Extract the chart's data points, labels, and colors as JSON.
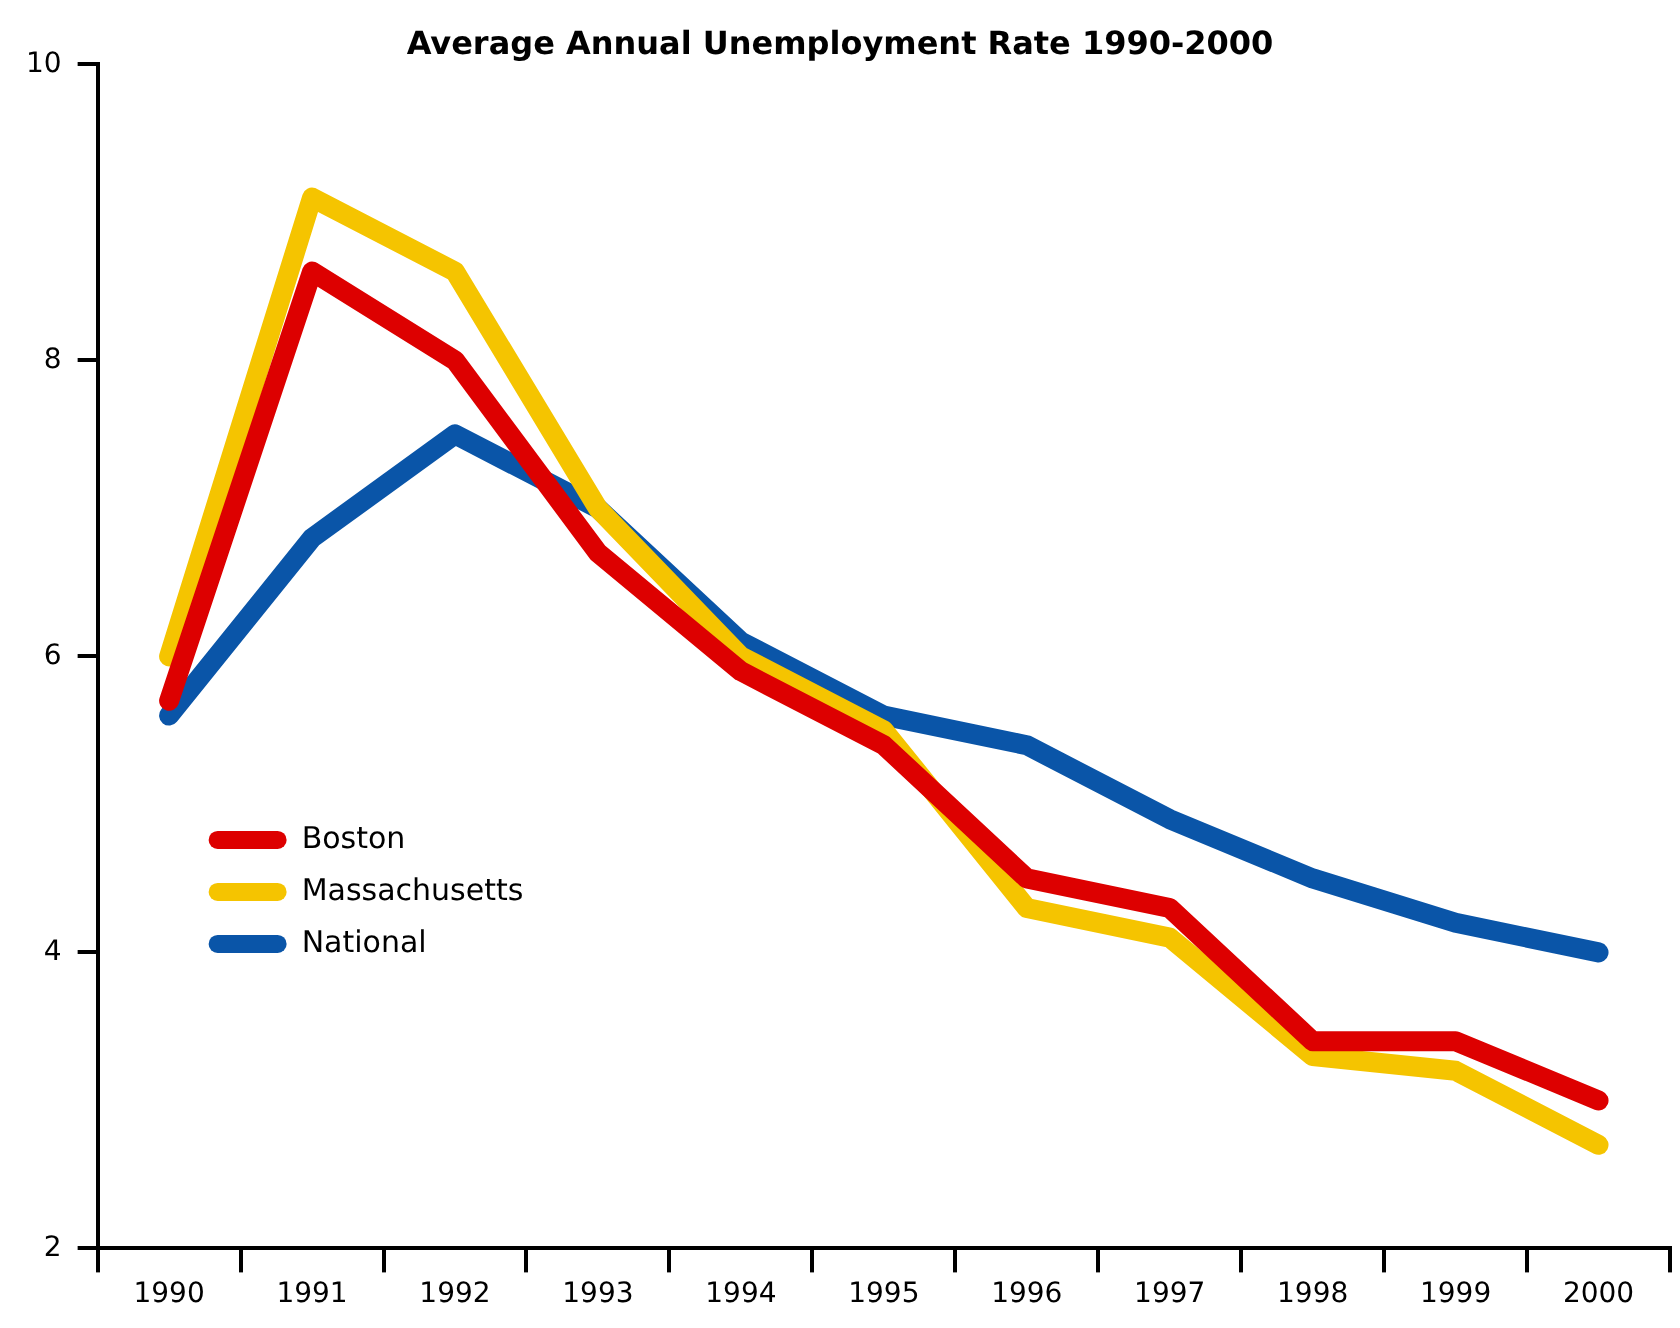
{
  "chart_data": {
    "type": "line",
    "title": "Average Annual Unemployment Rate 1990-2000",
    "categories": [
      "1990",
      "1991",
      "1992",
      "1993",
      "1994",
      "1995",
      "1996",
      "1997",
      "1998",
      "1999",
      "2000"
    ],
    "series": [
      {
        "name": "Boston",
        "color": "#dd0000",
        "values": [
          5.7,
          8.6,
          8.0,
          6.7,
          5.9,
          5.4,
          4.5,
          4.3,
          3.4,
          3.4,
          3.0
        ]
      },
      {
        "name": "Massachusetts",
        "color": "#f5c400",
        "values": [
          6.0,
          9.1,
          8.6,
          7.0,
          6.0,
          5.5,
          4.3,
          4.1,
          3.3,
          3.2,
          2.7
        ]
      },
      {
        "name": "National",
        "color": "#0a55a8",
        "values": [
          5.6,
          6.8,
          7.5,
          7.0,
          6.1,
          5.6,
          5.4,
          4.9,
          4.5,
          4.2,
          4.0
        ]
      }
    ],
    "ylim": [
      2,
      10
    ],
    "yticks": [
      2,
      4,
      6,
      8,
      10
    ],
    "grid": false,
    "legend": "left",
    "marker": "none",
    "line_style": "solid"
  }
}
